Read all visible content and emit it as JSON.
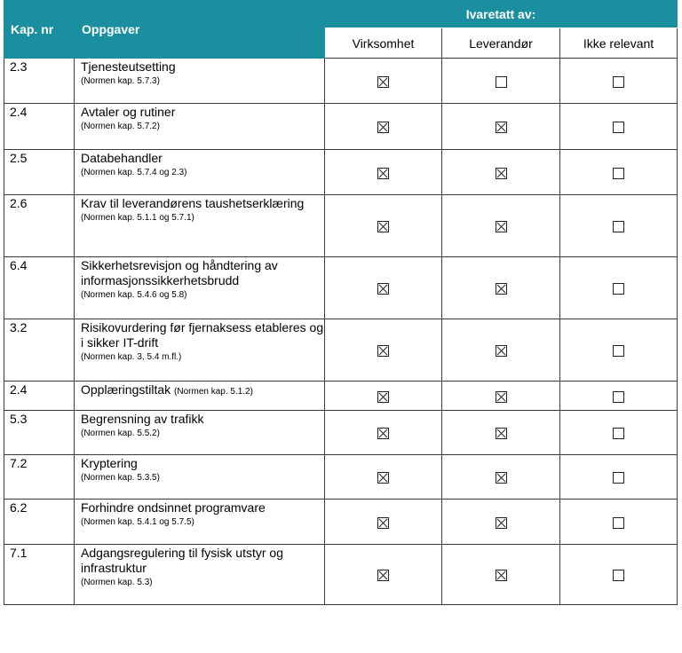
{
  "header": {
    "kap_nr": "Kap. nr",
    "oppgaver": "Oppgaver",
    "ivaretatt_av": "Ivaretatt av:",
    "virksomhet": "Virksomhet",
    "leverandor": "Leverandør",
    "ikke_relevant": "Ikke relevant"
  },
  "rows": [
    {
      "kap": "2.3",
      "title": "Tjenesteutsetting",
      "ref": "(Normen kap. 5.7.3)",
      "virksomhet": true,
      "leverandor": false,
      "ikke_relevant": false
    },
    {
      "kap": "2.4",
      "title": "Avtaler og rutiner",
      "ref": "(Normen kap. 5.7.2)",
      "virksomhet": true,
      "leverandor": true,
      "ikke_relevant": false
    },
    {
      "kap": "2.5",
      "title": "Databehandler",
      "ref": "(Normen kap. 5.7.4 og 2.3)",
      "virksomhet": true,
      "leverandor": true,
      "ikke_relevant": false
    },
    {
      "kap": "2.6",
      "title": "Krav til leverandørens taushetserklæring",
      "ref": "(Normen kap. 5.1.1 og 5.7.1)",
      "virksomhet": true,
      "leverandor": true,
      "ikke_relevant": false
    },
    {
      "kap": "6.4",
      "title": "Sikkerhetsrevisjon og håndtering av informasjonssikkerhetsbrudd",
      "ref": "(Normen kap. 5.4.6 og 5.8)",
      "virksomhet": true,
      "leverandor": true,
      "ikke_relevant": false
    },
    {
      "kap": "3.2",
      "title": "Risikovurdering før fjernaksess etableres og i sikker IT-drift",
      "ref": "(Normen kap. 3, 5.4 m.fl.)",
      "virksomhet": true,
      "leverandor": true,
      "ikke_relevant": false
    },
    {
      "kap": "2.4",
      "title": "Opplæringstiltak",
      "ref": "(Normen kap. 5.1.2)",
      "inline": true,
      "virksomhet": true,
      "leverandor": true,
      "ikke_relevant": false
    },
    {
      "kap": "5.3",
      "title": "Begrensning av trafikk",
      "ref": "(Normen kap. 5.5.2)",
      "virksomhet": true,
      "leverandor": true,
      "ikke_relevant": false
    },
    {
      "kap": "7.2",
      "title": "Kryptering",
      "ref": "(Normen kap. 5.3.5)",
      "virksomhet": true,
      "leverandor": true,
      "ikke_relevant": false
    },
    {
      "kap": "6.2",
      "title": "Forhindre ondsinnet programvare",
      "ref": "(Normen kap. 5.4.1 og 5.7.5)",
      "virksomhet": true,
      "leverandor": true,
      "ikke_relevant": false
    },
    {
      "kap": "7.1",
      "title": "Adgangsregulering til fysisk utstyr og infrastruktur",
      "ref": "(Normen kap. 5.3)",
      "virksomhet": true,
      "leverandor": true,
      "ikke_relevant": false
    }
  ]
}
